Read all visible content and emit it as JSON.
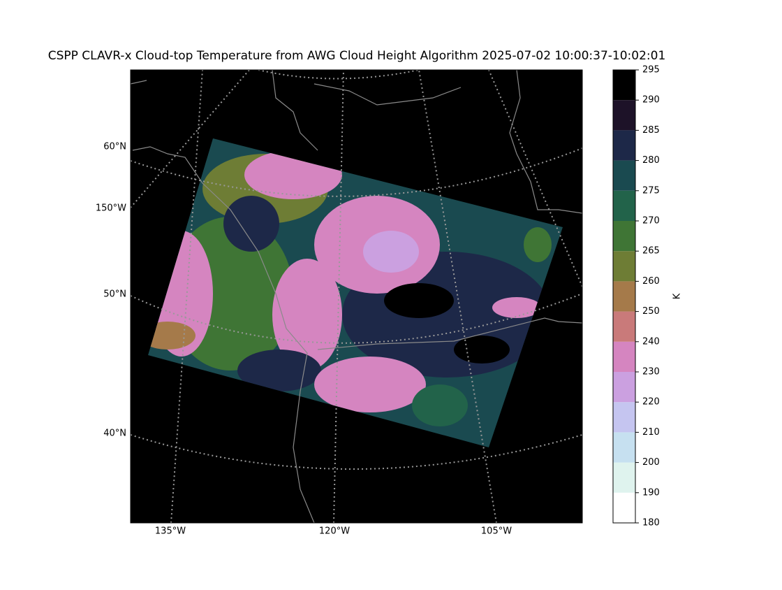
{
  "title": "CSPP CLAVR-x Cloud-top Temperature from AWG Cloud Height Algorithm 2025-07-02 10:00:37-10:02:01",
  "map": {
    "lat_labels": [
      "60°N",
      "150°W",
      "50°N",
      "40°N"
    ],
    "lon_labels": [
      "135°W",
      "120°W",
      "105°W"
    ]
  },
  "colorbar": {
    "label": "K",
    "ticks": [
      180,
      190,
      200,
      210,
      220,
      230,
      240,
      250,
      260,
      265,
      270,
      275,
      280,
      285,
      290,
      295
    ],
    "colors": [
      "#ffffff",
      "#dff3ee",
      "#c6e0f0",
      "#c5c5f0",
      "#cba0e0",
      "#d585c0",
      "#c97a7a",
      "#a57a4a",
      "#6e7d35",
      "#3f7535",
      "#22634a",
      "#1a4a50",
      "#1d2848",
      "#1d1228",
      "#000000"
    ]
  }
}
